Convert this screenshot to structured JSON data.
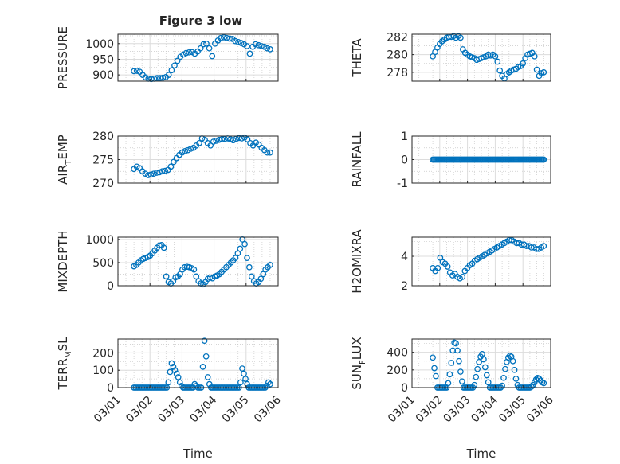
{
  "figure": {
    "title": "Figure 3 low",
    "xlabel": "Time",
    "date_ticks": [
      "03/01",
      "03/02",
      "03/03",
      "03/04",
      "03/05",
      "03/06"
    ],
    "marker_color": "#0072bd"
  },
  "chart_data": [
    {
      "type": "scatter",
      "ylabel_main": "PRESSURE",
      "ylabel_sub": "",
      "ylim": [
        880,
        1030
      ],
      "yticks": [
        900,
        950,
        1000
      ],
      "minor_y": [
        925,
        975,
        1025
      ],
      "xlim": [
        "03/01 00:00",
        "03/06 00:00"
      ],
      "grid": true,
      "x_start": "03/01 12:00",
      "x_end": "03/05 18:00",
      "series": [
        {
          "values": [
            912,
            913,
            910,
            900,
            892,
            888,
            887,
            888,
            890,
            890,
            891,
            893,
            900,
            915,
            930,
            945,
            958,
            965,
            970,
            972,
            973,
            968,
            975,
            985,
            998,
            1000,
            985,
            960,
            1000,
            1010,
            1018,
            1020,
            1018,
            1016,
            1015,
            1008,
            1005,
            1002,
            998,
            992,
            968,
            990,
            998,
            995,
            992,
            990,
            985,
            982
          ]
        }
      ]
    },
    {
      "type": "scatter",
      "ylabel_main": "THETA",
      "ylabel_sub": "",
      "ylim": [
        277,
        282.3
      ],
      "yticks": [
        278,
        280,
        282
      ],
      "minor_y": [
        277,
        279,
        281
      ],
      "xlim": [
        "03/01 00:00",
        "03/06 00:00"
      ],
      "grid": true,
      "x_start": "03/01 18:00",
      "x_end": "03/05 18:00",
      "series": [
        {
          "values": [
            279.8,
            280.3,
            280.8,
            281.2,
            281.5,
            281.7,
            281.9,
            282.0,
            282.0,
            282.1,
            281.9,
            282.1,
            281.9,
            280.6,
            280.2,
            280.0,
            279.8,
            279.7,
            279.6,
            279.4,
            279.5,
            279.6,
            279.7,
            279.8,
            280.0,
            279.9,
            280.0,
            279.8,
            279.2,
            278.2,
            277.6,
            277.3,
            277.8,
            278.0,
            278.2,
            278.3,
            278.4,
            278.6,
            278.7,
            279.0,
            279.6,
            280.0,
            280.1,
            280.2,
            279.8,
            278.3,
            277.6,
            277.9,
            278.0
          ]
        }
      ]
    },
    {
      "type": "scatter",
      "ylabel_main": "AIR",
      "ylabel_sub": "T",
      "ylabel_tail": "EMP",
      "ylim": [
        270,
        280
      ],
      "yticks": [
        270,
        275,
        280
      ],
      "minor_y": [
        272.5,
        277.5
      ],
      "xlim": [
        "03/01 00:00",
        "03/06 00:00"
      ],
      "grid": true,
      "x_start": "03/01 12:00",
      "x_end": "03/05 18:00",
      "series": [
        {
          "values": [
            273.0,
            273.5,
            273.2,
            272.5,
            272.0,
            271.7,
            271.8,
            272.0,
            272.2,
            272.3,
            272.5,
            272.6,
            272.8,
            273.5,
            274.5,
            275.3,
            276.0,
            276.5,
            276.8,
            277.0,
            277.3,
            277.5,
            278.0,
            278.5,
            279.5,
            279.2,
            278.5,
            278.0,
            278.8,
            279.0,
            279.2,
            279.3,
            279.4,
            279.5,
            279.3,
            279.1,
            279.4,
            279.6,
            279.5,
            279.7,
            279.3,
            278.5,
            278.0,
            278.6,
            278.2,
            277.5,
            277.0,
            276.5,
            276.5
          ]
        }
      ]
    },
    {
      "type": "scatter",
      "ylabel_main": "RAINFALL",
      "ylabel_sub": "",
      "ylim": [
        -1,
        1
      ],
      "yticks": [
        -1,
        0,
        1
      ],
      "minor_y": [
        -0.5,
        0.5
      ],
      "xlim": [
        "03/01 00:00",
        "03/06 00:00"
      ],
      "grid": true,
      "x_start": "03/01 18:00",
      "x_end": "03/05 18:00",
      "series": [
        {
          "values": [
            0,
            0,
            0,
            0,
            0,
            0,
            0,
            0,
            0,
            0,
            0,
            0,
            0,
            0,
            0,
            0,
            0,
            0,
            0,
            0,
            0,
            0,
            0,
            0,
            0,
            0,
            0,
            0,
            0,
            0,
            0,
            0,
            0,
            0,
            0,
            0,
            0,
            0,
            0,
            0,
            0,
            0,
            0,
            0,
            0,
            0,
            0,
            0,
            0,
            0,
            0,
            0,
            0,
            0,
            0,
            0,
            0,
            0,
            0,
            0,
            0,
            0,
            0,
            0,
            0,
            0,
            0,
            0,
            0,
            0,
            0,
            0,
            0,
            0,
            0,
            0,
            0,
            0,
            0,
            0,
            0,
            0,
            0,
            0,
            0,
            0,
            0,
            0,
            0,
            0,
            0,
            0,
            0,
            0,
            0,
            0,
            0
          ]
        }
      ]
    },
    {
      "type": "scatter",
      "ylabel_main": "MIXDEPTH",
      "ylabel_sub": "",
      "ylim": [
        0,
        1050
      ],
      "yticks": [
        0,
        500,
        1000
      ],
      "minor_y": [
        250,
        750
      ],
      "xlim": [
        "03/01 00:00",
        "03/06 00:00"
      ],
      "grid": true,
      "x_start": "03/01 12:00",
      "x_end": "03/05 18:00",
      "series": [
        {
          "values": [
            420,
            450,
            500,
            550,
            580,
            600,
            620,
            650,
            700,
            760,
            820,
            870,
            880,
            820,
            200,
            80,
            50,
            100,
            180,
            200,
            250,
            350,
            400,
            410,
            400,
            380,
            350,
            200,
            100,
            50,
            30,
            80,
            150,
            180,
            160,
            200,
            220,
            250,
            300,
            350,
            400,
            450,
            500,
            550,
            600,
            700,
            800,
            1000,
            900,
            600,
            400,
            200,
            100,
            50,
            80,
            150,
            250,
            350,
            400,
            450
          ]
        }
      ]
    },
    {
      "type": "scatter",
      "ylabel_main": "H2OMIXRA",
      "ylabel_sub": "",
      "ylim": [
        2,
        5.3
      ],
      "yticks": [
        2,
        4
      ],
      "minor_y": [
        3,
        5
      ],
      "xlim": [
        "03/01 00:00",
        "03/06 00:00"
      ],
      "grid": true,
      "x_start": "03/01 18:00",
      "x_end": "03/05 18:00",
      "series": [
        {
          "values": [
            3.2,
            3.0,
            3.2,
            3.9,
            3.6,
            3.5,
            3.3,
            2.9,
            2.7,
            2.8,
            2.6,
            2.5,
            2.6,
            3.0,
            3.2,
            3.4,
            3.5,
            3.7,
            3.8,
            3.9,
            4.0,
            4.1,
            4.2,
            4.3,
            4.4,
            4.5,
            4.6,
            4.7,
            4.8,
            4.9,
            5.0,
            5.1,
            5.1,
            5.0,
            4.9,
            4.9,
            4.8,
            4.8,
            4.7,
            4.7,
            4.6,
            4.6,
            4.5,
            4.5,
            4.6,
            4.7
          ]
        }
      ]
    },
    {
      "type": "scatter",
      "ylabel_main": "TERR",
      "ylabel_sub": "M",
      "ylabel_tail": "SL",
      "ylim": [
        0,
        280
      ],
      "yticks": [
        0,
        100,
        200
      ],
      "minor_y": [
        50,
        150,
        250
      ],
      "xlim": [
        "03/01 00:00",
        "03/06 00:00"
      ],
      "grid": true,
      "x_start": "03/01 12:00",
      "x_end": "03/05 18:00",
      "series": [
        {
          "values": [
            0,
            0,
            0,
            0,
            0,
            0,
            0,
            0,
            0,
            0,
            0,
            0,
            0,
            0,
            0,
            0,
            0,
            0,
            0,
            0,
            0,
            30,
            90,
            140,
            120,
            100,
            80,
            60,
            30,
            10,
            0,
            0,
            0,
            0,
            0,
            0,
            0,
            20,
            10,
            0,
            0,
            0,
            120,
            270,
            180,
            60,
            20,
            0,
            0,
            0,
            0,
            0,
            0,
            0,
            0,
            0,
            0,
            0,
            0,
            0,
            0,
            0,
            0,
            0,
            0,
            30,
            110,
            80,
            50,
            20,
            0,
            0,
            0,
            0,
            0,
            0,
            0,
            0,
            0,
            0,
            0,
            10,
            30,
            20
          ]
        }
      ]
    },
    {
      "type": "scatter",
      "ylabel_main": "SUN",
      "ylabel_sub": "F",
      "ylabel_tail": "LUX",
      "ylim": [
        0,
        550
      ],
      "yticks": [
        0,
        200,
        400
      ],
      "minor_y": [
        100,
        300,
        500
      ],
      "xlim": [
        "03/01 00:00",
        "03/06 00:00"
      ],
      "grid": true,
      "x_start": "03/01 18:00",
      "x_end": "03/05 18:00",
      "series": [
        {
          "values": [
            340,
            220,
            130,
            0,
            0,
            0,
            0,
            0,
            0,
            0,
            50,
            150,
            280,
            420,
            510,
            500,
            420,
            300,
            180,
            70,
            0,
            0,
            0,
            0,
            0,
            0,
            0,
            30,
            120,
            210,
            290,
            350,
            380,
            320,
            230,
            140,
            60,
            0,
            0,
            0,
            0,
            0,
            0,
            0,
            0,
            20,
            110,
            210,
            290,
            340,
            360,
            350,
            300,
            200,
            100,
            30,
            0,
            0,
            0,
            0,
            0,
            0,
            0,
            0,
            10,
            30,
            60,
            90,
            110,
            100,
            80,
            60,
            50
          ]
        }
      ]
    }
  ]
}
